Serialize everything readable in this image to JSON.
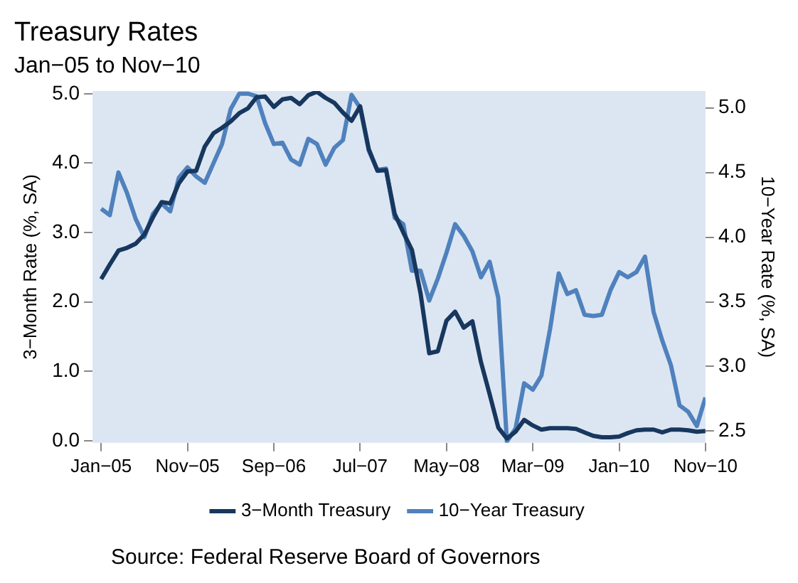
{
  "chart_data": {
    "type": "line",
    "title": "Treasury Rates",
    "subtitle": "Jan−05 to Nov−10",
    "ylabel": "3−Month Rate (%, SA)",
    "y2label": "10−Year Rate (%, SA)",
    "x": [
      "2005-01",
      "2005-02",
      "2005-03",
      "2005-04",
      "2005-05",
      "2005-06",
      "2005-07",
      "2005-08",
      "2005-09",
      "2005-10",
      "2005-11",
      "2005-12",
      "2006-01",
      "2006-02",
      "2006-03",
      "2006-04",
      "2006-05",
      "2006-06",
      "2006-07",
      "2006-08",
      "2006-09",
      "2006-10",
      "2006-11",
      "2006-12",
      "2007-01",
      "2007-02",
      "2007-03",
      "2007-04",
      "2007-05",
      "2007-06",
      "2007-07",
      "2007-08",
      "2007-09",
      "2007-10",
      "2007-11",
      "2007-12",
      "2008-01",
      "2008-02",
      "2008-03",
      "2008-04",
      "2008-05",
      "2008-06",
      "2008-07",
      "2008-08",
      "2008-09",
      "2008-10",
      "2008-11",
      "2008-12",
      "2009-01",
      "2009-02",
      "2009-03",
      "2009-04",
      "2009-05",
      "2009-06",
      "2009-07",
      "2009-08",
      "2009-09",
      "2009-10",
      "2009-11",
      "2009-12",
      "2010-01",
      "2010-02",
      "2010-03",
      "2010-04",
      "2010-05",
      "2010-06",
      "2010-07",
      "2010-08",
      "2010-09",
      "2010-10",
      "2010-11"
    ],
    "series": [
      {
        "name": "3−Month Treasury",
        "color": "#17375e",
        "values": [
          2.33,
          2.54,
          2.74,
          2.78,
          2.84,
          2.97,
          3.22,
          3.44,
          3.42,
          3.71,
          3.88,
          3.89,
          4.24,
          4.43,
          4.51,
          4.6,
          4.72,
          4.79,
          4.95,
          4.96,
          4.81,
          4.92,
          4.94,
          4.85,
          4.98,
          5.03,
          4.94,
          4.87,
          4.73,
          4.61,
          4.82,
          4.2,
          3.89,
          3.9,
          3.27,
          3.0,
          2.75,
          2.12,
          1.26,
          1.29,
          1.73,
          1.86,
          1.63,
          1.72,
          1.13,
          0.67,
          0.19,
          0.03,
          0.13,
          0.3,
          0.22,
          0.16,
          0.18,
          0.18,
          0.18,
          0.17,
          0.12,
          0.07,
          0.05,
          0.05,
          0.06,
          0.11,
          0.15,
          0.16,
          0.16,
          0.12,
          0.16,
          0.16,
          0.15,
          0.13,
          0.14
        ]
      },
      {
        "name": "10−Year Treasury",
        "color": "#4f81bd",
        "axis": "y2",
        "values": [
          4.22,
          4.17,
          4.5,
          4.34,
          4.14,
          4.0,
          4.18,
          4.26,
          4.2,
          4.46,
          4.54,
          4.47,
          4.42,
          4.57,
          4.72,
          4.99,
          5.11,
          5.11,
          5.09,
          4.88,
          4.72,
          4.73,
          4.6,
          4.56,
          4.76,
          4.72,
          4.56,
          4.69,
          4.75,
          5.1,
          5.0,
          4.67,
          4.52,
          4.53,
          4.15,
          4.1,
          3.74,
          3.74,
          3.51,
          3.68,
          3.88,
          4.1,
          4.01,
          3.89,
          3.69,
          3.81,
          3.53,
          2.42,
          2.52,
          2.87,
          2.82,
          2.93,
          3.29,
          3.72,
          3.56,
          3.59,
          3.4,
          3.39,
          3.4,
          3.59,
          3.73,
          3.69,
          3.73,
          3.85,
          3.42,
          3.2,
          3.01,
          2.7,
          2.65,
          2.54,
          2.76
        ]
      }
    ],
    "xlim": [
      "2004-12",
      "2010-11"
    ],
    "xticks": [
      {
        "value": "2005-01",
        "label": "Jan−05"
      },
      {
        "value": "2005-11",
        "label": "Nov−05"
      },
      {
        "value": "2006-09",
        "label": "Sep−06"
      },
      {
        "value": "2007-07",
        "label": "Jul−07"
      },
      {
        "value": "2008-05",
        "label": "May−08"
      },
      {
        "value": "2009-03",
        "label": "Mar−09"
      },
      {
        "value": "2010-01",
        "label": "Jan−10"
      },
      {
        "value": "2010-11",
        "label": "Nov−10"
      }
    ],
    "ylim": [
      -0.03,
      5.04
    ],
    "yticks": [
      {
        "value": 0,
        "label": "0.0"
      },
      {
        "value": 1,
        "label": "1.0"
      },
      {
        "value": 2,
        "label": "2.0"
      },
      {
        "value": 3,
        "label": "3.0"
      },
      {
        "value": 4,
        "label": "4.0"
      },
      {
        "value": 5,
        "label": "5.0"
      }
    ],
    "y2lim": [
      2.41,
      5.13
    ],
    "y2ticks": [
      {
        "value": 2.5,
        "label": "2.5"
      },
      {
        "value": 3,
        "label": "3.0"
      },
      {
        "value": 3.5,
        "label": "3.5"
      },
      {
        "value": 4,
        "label": "4.0"
      },
      {
        "value": 4.5,
        "label": "4.5"
      },
      {
        "value": 5,
        "label": "5.0"
      }
    ],
    "grid": false,
    "legend": "bottom",
    "marker": "none",
    "line_style": "solid",
    "annotations": [
      "Source: Federal Reserve Board of Governors"
    ]
  }
}
